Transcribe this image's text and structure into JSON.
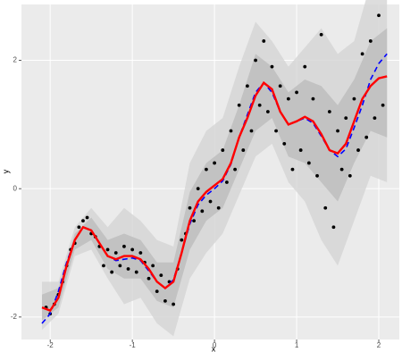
{
  "chart_data": {
    "type": "scatter",
    "x_label": "x",
    "y_label": "y",
    "xlim": [
      -2.35,
      2.25
    ],
    "ylim": [
      -2.35,
      2.87
    ],
    "xticks": [
      -2,
      -1,
      0,
      1,
      2
    ],
    "yticks": [
      -2,
      0,
      2
    ],
    "grid": true,
    "bands": [
      {
        "color": "#d4d4d4",
        "x": [
          -2.1,
          -1.9,
          -1.7,
          -1.5,
          -1.3,
          -1.1,
          -0.9,
          -0.7,
          -0.5,
          -0.3,
          -0.1,
          0.1,
          0.3,
          0.5,
          0.7,
          0.9,
          1.1,
          1.3,
          1.5,
          1.7,
          1.9,
          2.1
        ],
        "upper": [
          -1.45,
          -1.45,
          -0.6,
          -0.3,
          -0.6,
          -0.3,
          -0.5,
          -0.8,
          -0.9,
          0.4,
          0.9,
          1.1,
          1.9,
          2.6,
          2.3,
          1.9,
          2.2,
          2.5,
          2.1,
          2.3,
          3.2,
          3.4
        ],
        "lower": [
          -2.2,
          -1.95,
          -1.05,
          -0.95,
          -1.4,
          -1.8,
          -1.7,
          -2.1,
          -2.3,
          -1.4,
          -1.0,
          -0.7,
          -0.1,
          0.5,
          0.7,
          0.1,
          -0.2,
          -0.8,
          -1.2,
          -0.5,
          0.2,
          0.1
        ]
      },
      {
        "color": "#bcbcbc",
        "x": [
          -2.1,
          -1.9,
          -1.7,
          -1.5,
          -1.3,
          -1.1,
          -0.9,
          -0.7,
          -0.5,
          -0.3,
          -0.1,
          0.1,
          0.3,
          0.5,
          0.7,
          0.9,
          1.1,
          1.3,
          1.5,
          1.7,
          1.9,
          2.1
        ],
        "upper": [
          -1.65,
          -1.55,
          -0.7,
          -0.45,
          -0.8,
          -0.7,
          -0.8,
          -1.15,
          -1.15,
          -0.05,
          0.4,
          0.6,
          1.3,
          2.1,
          1.9,
          1.5,
          1.7,
          1.6,
          1.3,
          1.7,
          2.3,
          2.5
        ],
        "lower": [
          -2.05,
          -1.85,
          -0.95,
          -0.8,
          -1.25,
          -1.4,
          -1.4,
          -1.75,
          -1.85,
          -0.95,
          -0.5,
          -0.3,
          0.3,
          0.9,
          1.1,
          0.5,
          0.4,
          0.1,
          -0.2,
          0.4,
          0.9,
          0.8
        ]
      }
    ],
    "points": {
      "color": "#000000",
      "x": [
        -2.05,
        -2.0,
        -1.95,
        -1.9,
        -1.85,
        -1.8,
        -1.75,
        -1.7,
        -1.65,
        -1.6,
        -1.55,
        -1.5,
        -1.45,
        -1.4,
        -1.35,
        -1.3,
        -1.25,
        -1.2,
        -1.15,
        -1.1,
        -1.05,
        -1.0,
        -0.95,
        -0.9,
        -0.85,
        -0.8,
        -0.75,
        -0.7,
        -0.65,
        -0.6,
        -0.55,
        -0.5,
        -0.45,
        -0.4,
        -0.35,
        -0.3,
        -0.25,
        -0.2,
        -0.15,
        -0.1,
        -0.05,
        0.0,
        0.05,
        0.1,
        0.15,
        0.2,
        0.25,
        0.3,
        0.35,
        0.4,
        0.45,
        0.5,
        0.55,
        0.6,
        0.65,
        0.7,
        0.75,
        0.8,
        0.85,
        0.9,
        0.95,
        1.0,
        1.05,
        1.1,
        1.15,
        1.2,
        1.25,
        1.3,
        1.35,
        1.4,
        1.45,
        1.5,
        1.55,
        1.6,
        1.65,
        1.7,
        1.75,
        1.8,
        1.85,
        1.9,
        1.95,
        2.0,
        2.05
      ],
      "y": [
        -1.85,
        -1.95,
        -1.8,
        -1.65,
        -1.45,
        -1.2,
        -0.95,
        -0.85,
        -0.6,
        -0.5,
        -0.45,
        -0.7,
        -0.75,
        -0.9,
        -1.2,
        -0.95,
        -1.3,
        -1.0,
        -1.2,
        -0.9,
        -1.25,
        -0.95,
        -1.3,
        -1.0,
        -1.15,
        -1.4,
        -1.2,
        -1.6,
        -1.35,
        -1.75,
        -1.45,
        -1.8,
        -1.25,
        -0.8,
        -0.7,
        -0.3,
        -0.5,
        0.0,
        -0.35,
        0.3,
        -0.2,
        0.4,
        -0.3,
        0.6,
        0.1,
        0.9,
        0.3,
        1.3,
        0.6,
        1.6,
        0.9,
        2.0,
        1.3,
        2.3,
        1.2,
        1.9,
        0.9,
        1.6,
        0.7,
        1.4,
        0.3,
        1.5,
        0.6,
        1.9,
        0.4,
        1.4,
        0.2,
        2.4,
        -0.3,
        1.2,
        -0.6,
        0.9,
        0.3,
        1.1,
        0.2,
        1.4,
        0.6,
        2.1,
        0.8,
        2.3,
        1.1,
        2.7,
        1.3
      ]
    },
    "lines": [
      {
        "color": "#0000ff",
        "dashed": true,
        "x": [
          -2.1,
          -2.0,
          -1.9,
          -1.8,
          -1.7,
          -1.6,
          -1.5,
          -1.4,
          -1.3,
          -1.2,
          -1.1,
          -1.0,
          -0.9,
          -0.8,
          -0.7,
          -0.6,
          -0.5,
          -0.4,
          -0.3,
          -0.2,
          -0.1,
          0.0,
          0.1,
          0.2,
          0.3,
          0.4,
          0.5,
          0.6,
          0.7,
          0.8,
          0.9,
          1.0,
          1.1,
          1.2,
          1.3,
          1.4,
          1.5,
          1.6,
          1.7,
          1.8,
          1.9,
          2.0,
          2.1
        ],
        "values": [
          -2.1,
          -1.95,
          -1.6,
          -1.15,
          -0.8,
          -0.6,
          -0.65,
          -0.85,
          -1.05,
          -1.12,
          -1.1,
          -1.08,
          -1.12,
          -1.28,
          -1.45,
          -1.55,
          -1.42,
          -1.0,
          -0.55,
          -0.25,
          -0.1,
          0.0,
          0.12,
          0.38,
          0.8,
          1.15,
          1.5,
          1.65,
          1.5,
          1.2,
          1.0,
          1.05,
          1.1,
          1.02,
          0.82,
          0.6,
          0.5,
          0.62,
          0.95,
          1.3,
          1.7,
          1.95,
          2.1
        ]
      },
      {
        "color": "#ff0000",
        "dashed": false,
        "x": [
          -2.1,
          -2.0,
          -1.9,
          -1.8,
          -1.7,
          -1.6,
          -1.5,
          -1.4,
          -1.3,
          -1.2,
          -1.1,
          -1.0,
          -0.9,
          -0.8,
          -0.7,
          -0.6,
          -0.5,
          -0.4,
          -0.3,
          -0.2,
          -0.1,
          0.0,
          0.1,
          0.2,
          0.3,
          0.4,
          0.5,
          0.6,
          0.7,
          0.8,
          0.9,
          1.0,
          1.1,
          1.2,
          1.3,
          1.4,
          1.5,
          1.6,
          1.7,
          1.8,
          1.9,
          2.0,
          2.1
        ],
        "values": [
          -1.85,
          -1.9,
          -1.7,
          -1.2,
          -0.8,
          -0.6,
          -0.65,
          -0.85,
          -1.05,
          -1.1,
          -1.05,
          -1.05,
          -1.1,
          -1.25,
          -1.45,
          -1.55,
          -1.45,
          -1.0,
          -0.5,
          -0.2,
          -0.05,
          0.05,
          0.15,
          0.4,
          0.8,
          1.1,
          1.45,
          1.65,
          1.55,
          1.2,
          1.0,
          1.05,
          1.12,
          1.05,
          0.85,
          0.6,
          0.55,
          0.7,
          1.05,
          1.4,
          1.6,
          1.72,
          1.75
        ]
      }
    ]
  }
}
